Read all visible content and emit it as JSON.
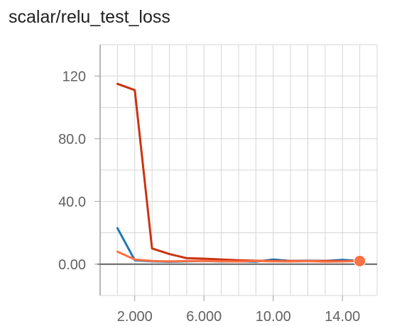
{
  "chart_data": {
    "type": "line",
    "title": "scalar/relu_test_loss",
    "xlabel": "",
    "ylabel": "",
    "xlim": [
      0.0,
      16.0
    ],
    "ylim": [
      -20,
      140
    ],
    "x_ticks": [
      2,
      6,
      10,
      14
    ],
    "x_tick_labels": [
      "2.000",
      "6.000",
      "10.00",
      "14.00"
    ],
    "y_ticks": [
      0,
      40,
      80,
      120
    ],
    "y_tick_labels": [
      "0.00",
      "40.0",
      "80.0",
      "120"
    ],
    "grid": true,
    "legend": "none",
    "series": [
      {
        "color": "#1f77b4",
        "x": [
          1,
          2,
          3,
          4,
          5,
          6,
          7,
          8,
          9,
          10,
          11,
          12,
          13,
          14,
          15
        ],
        "y": [
          23,
          2.5,
          1.8,
          1.5,
          1.8,
          2.0,
          1.7,
          1.8,
          1.6,
          3.0,
          2.0,
          2.2,
          2.0,
          2.8,
          2.0
        ]
      },
      {
        "color": "#cc3311",
        "x": [
          1,
          2,
          3,
          4,
          5,
          6,
          7,
          8,
          9,
          10,
          11,
          12,
          13,
          14,
          15
        ],
        "y": [
          115,
          111,
          10,
          6.5,
          3.8,
          3.5,
          3.0,
          2.5,
          2.2,
          2.0,
          2.0,
          2.0,
          2.1,
          1.9,
          2.0
        ]
      },
      {
        "color": "#ff7043",
        "x": [
          1,
          2,
          3,
          4,
          5,
          6,
          7,
          8,
          9,
          10,
          11,
          12,
          13,
          14,
          15
        ],
        "y": [
          8,
          3.0,
          2.0,
          1.8,
          2.0,
          2.1,
          1.8,
          1.7,
          2.0,
          1.8,
          1.7,
          1.9,
          1.6,
          1.7,
          2.0
        ],
        "end_marker": true
      }
    ]
  }
}
